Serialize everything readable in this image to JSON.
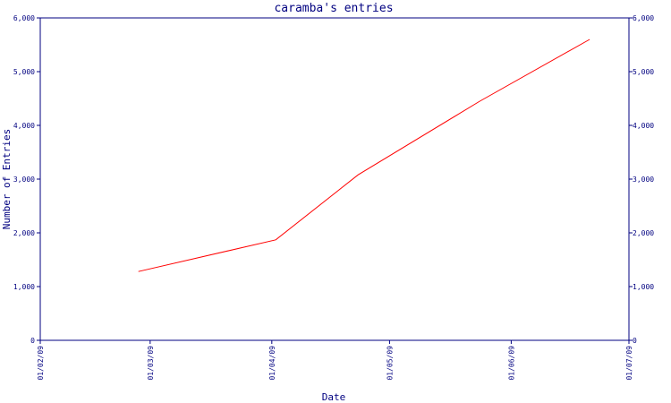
{
  "chart_data": {
    "type": "line",
    "title": "caramba's entries",
    "xlabel": "Date",
    "ylabel": "Number of Entries",
    "x_ticks": [
      "01/02/09",
      "01/03/09",
      "01/04/09",
      "01/05/09",
      "01/06/09",
      "01/07/09"
    ],
    "xlim": [
      "2009-02-01",
      "2009-07-01"
    ],
    "y_ticks": [
      "0",
      "1,000",
      "2,000",
      "3,000",
      "4,000",
      "5,000",
      "6,000"
    ],
    "y_tick_values": [
      0,
      1000,
      2000,
      3000,
      4000,
      5000,
      6000
    ],
    "ylim": [
      0,
      6000
    ],
    "y_axis_sides": [
      "left",
      "right"
    ],
    "grid": false,
    "series": [
      {
        "color": "#ff0000",
        "x": [
          "2009-02-26",
          "2009-04-02",
          "2009-04-23",
          "2009-05-24",
          "2009-06-21"
        ],
        "y": [
          1280,
          1870,
          3080,
          4450,
          5600
        ]
      }
    ]
  },
  "colors": {
    "axis": "#000080",
    "series": "#ff0000",
    "background": "#ffffff"
  }
}
